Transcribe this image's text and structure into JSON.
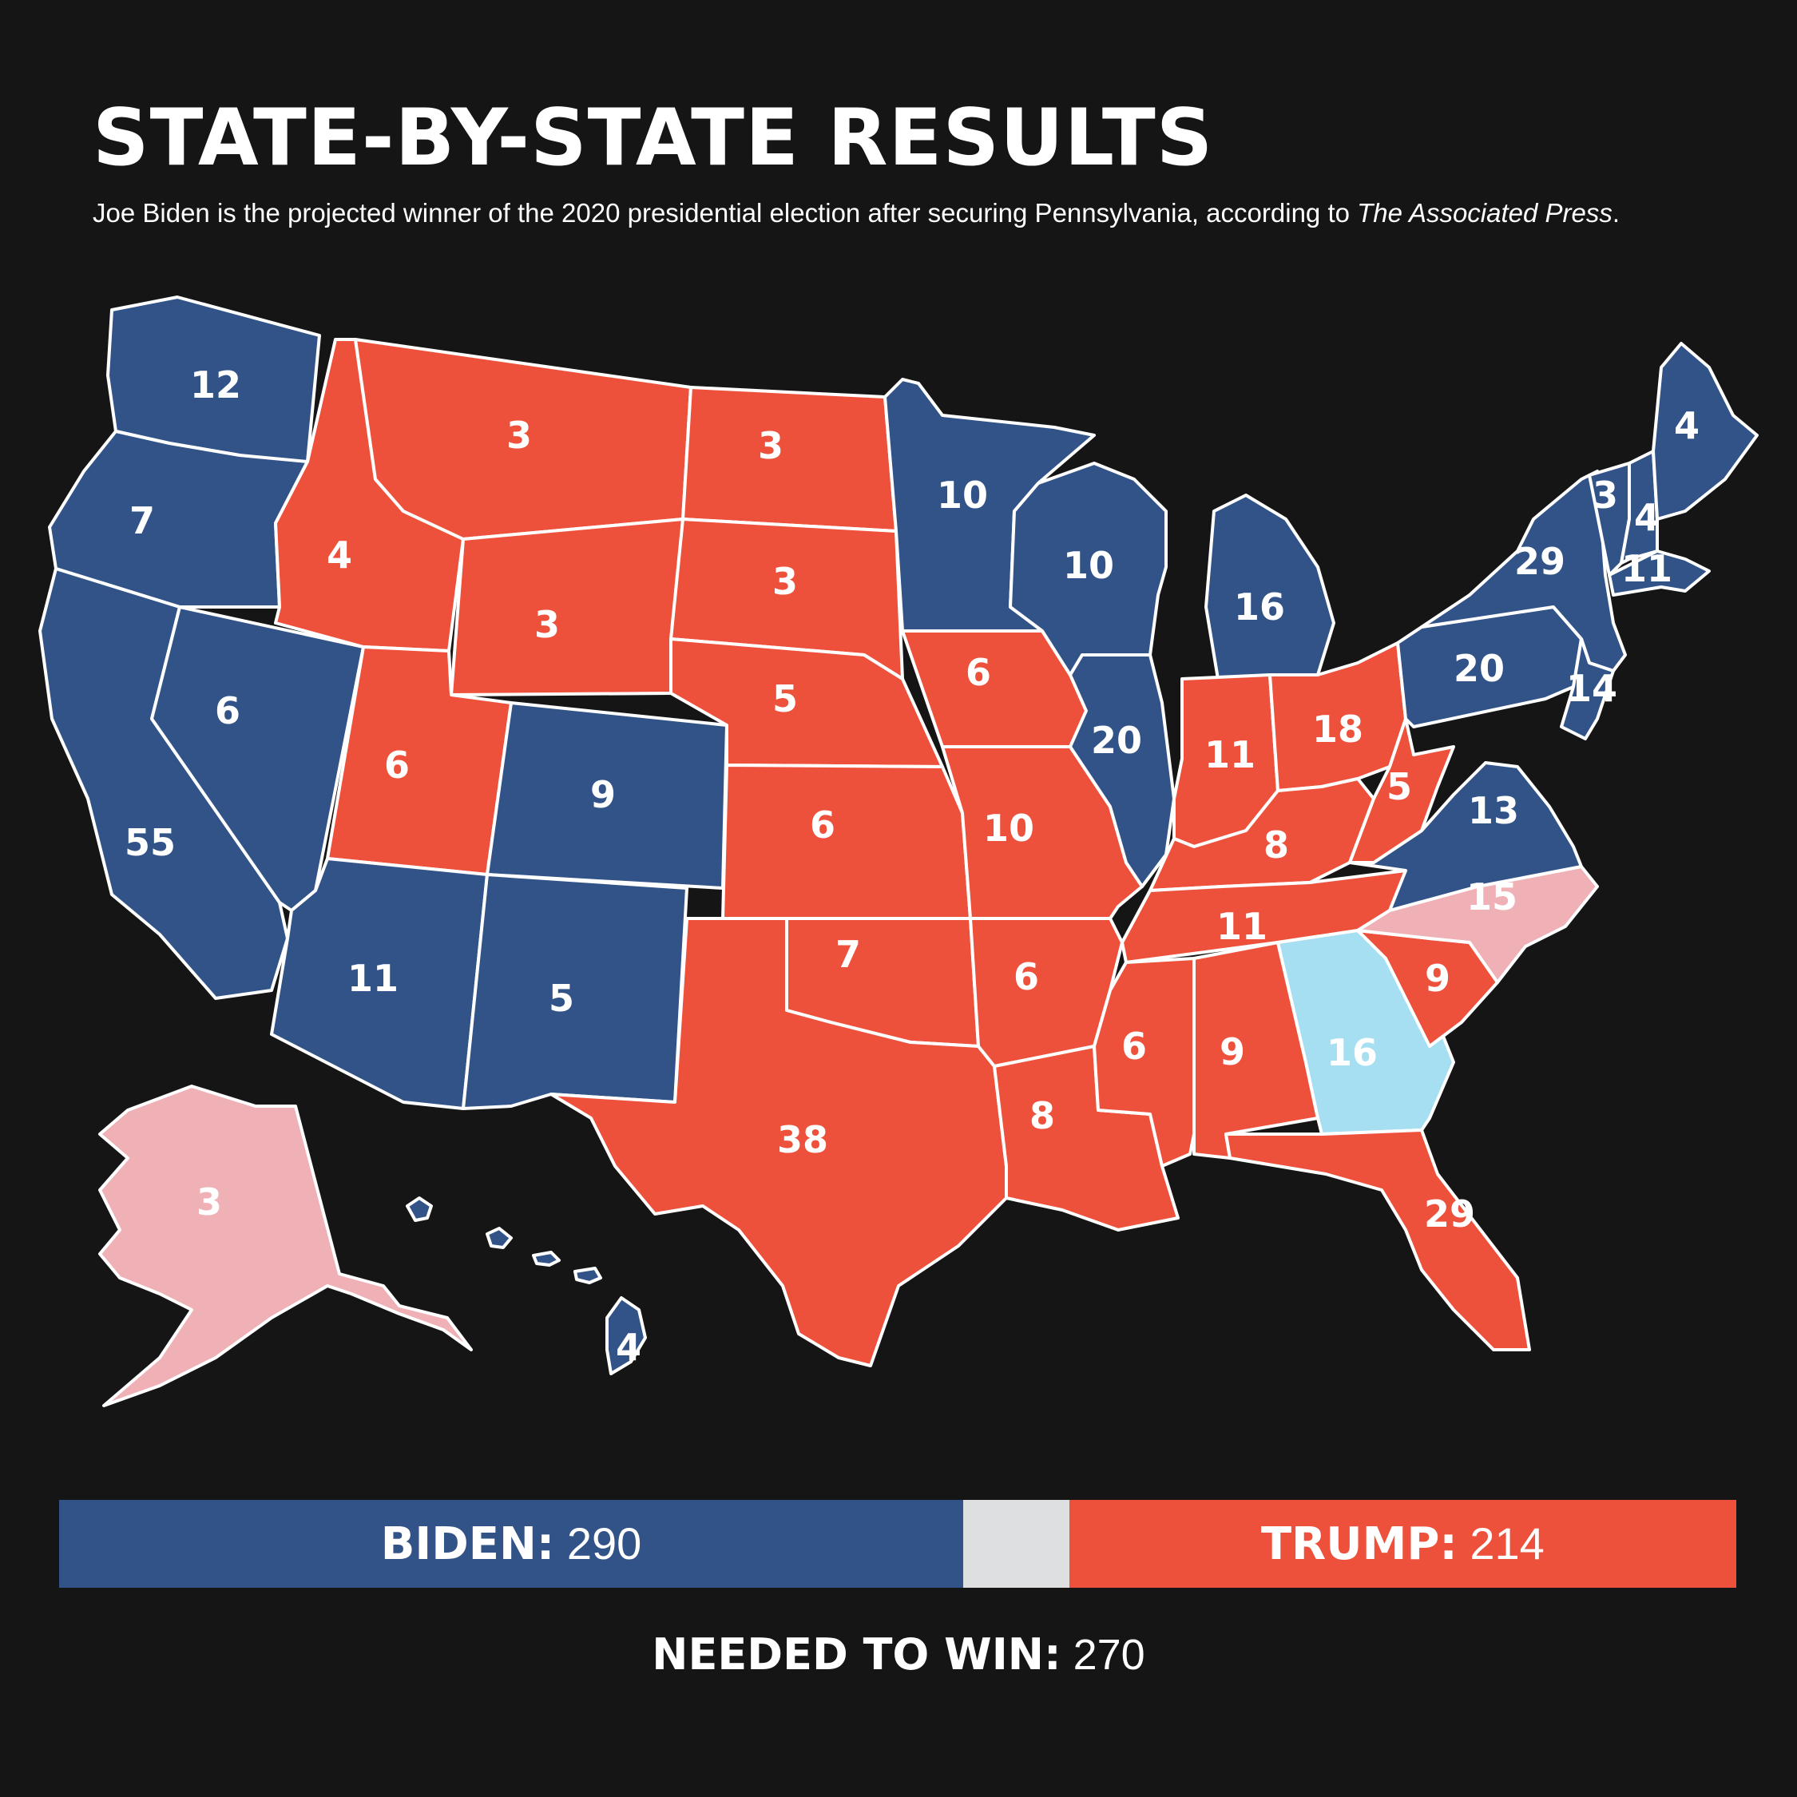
{
  "header": {
    "title": "STATE-BY-STATE RESULTS",
    "subtitle_main": "Joe Biden is the projected winner of the 2020 presidential election after securing Pennsylvania, according to ",
    "subtitle_source": "The Associated Press",
    "subtitle_end": "."
  },
  "colors": {
    "biden": "#325388",
    "trump": "#EE513B",
    "lean_trump": "#EFB0B6",
    "lean_biden": "#A6DFF2",
    "undecided": "#DEDFE0",
    "background": "#151515"
  },
  "states": [
    {
      "id": "WA",
      "votes": "12",
      "status": "biden"
    },
    {
      "id": "OR",
      "votes": "7",
      "status": "biden"
    },
    {
      "id": "CA",
      "votes": "55",
      "status": "biden"
    },
    {
      "id": "NV",
      "votes": "6",
      "status": "biden"
    },
    {
      "id": "ID",
      "votes": "4",
      "status": "trump"
    },
    {
      "id": "MT",
      "votes": "3",
      "status": "trump"
    },
    {
      "id": "WY",
      "votes": "3",
      "status": "trump"
    },
    {
      "id": "UT",
      "votes": "6",
      "status": "trump"
    },
    {
      "id": "AZ",
      "votes": "11",
      "status": "biden"
    },
    {
      "id": "CO",
      "votes": "9",
      "status": "biden"
    },
    {
      "id": "NM",
      "votes": "5",
      "status": "biden"
    },
    {
      "id": "ND",
      "votes": "3",
      "status": "trump"
    },
    {
      "id": "SD",
      "votes": "3",
      "status": "trump"
    },
    {
      "id": "NE",
      "votes": "5",
      "status": "trump"
    },
    {
      "id": "KS",
      "votes": "6",
      "status": "trump"
    },
    {
      "id": "OK",
      "votes": "7",
      "status": "trump"
    },
    {
      "id": "TX",
      "votes": "38",
      "status": "trump"
    },
    {
      "id": "MN",
      "votes": "10",
      "status": "biden"
    },
    {
      "id": "IA",
      "votes": "6",
      "status": "trump"
    },
    {
      "id": "MO",
      "votes": "10",
      "status": "trump"
    },
    {
      "id": "AR",
      "votes": "6",
      "status": "trump"
    },
    {
      "id": "LA",
      "votes": "8",
      "status": "trump"
    },
    {
      "id": "WI",
      "votes": "10",
      "status": "biden"
    },
    {
      "id": "IL",
      "votes": "20",
      "status": "biden"
    },
    {
      "id": "MI",
      "votes": "16",
      "status": "biden"
    },
    {
      "id": "IN",
      "votes": "11",
      "status": "trump"
    },
    {
      "id": "OH",
      "votes": "18",
      "status": "trump"
    },
    {
      "id": "KY",
      "votes": "8",
      "status": "trump"
    },
    {
      "id": "TN",
      "votes": "11",
      "status": "trump"
    },
    {
      "id": "MS",
      "votes": "6",
      "status": "trump"
    },
    {
      "id": "AL",
      "votes": "9",
      "status": "trump"
    },
    {
      "id": "GA",
      "votes": "16",
      "status": "lean_biden"
    },
    {
      "id": "FL",
      "votes": "29",
      "status": "trump"
    },
    {
      "id": "SC",
      "votes": "9",
      "status": "trump"
    },
    {
      "id": "NC",
      "votes": "15",
      "status": "lean_trump"
    },
    {
      "id": "VA",
      "votes": "13",
      "status": "biden"
    },
    {
      "id": "WV",
      "votes": "5",
      "status": "trump"
    },
    {
      "id": "PA",
      "votes": "20",
      "status": "biden"
    },
    {
      "id": "NY",
      "votes": "29",
      "status": "biden"
    },
    {
      "id": "VT",
      "votes": "3",
      "status": "biden"
    },
    {
      "id": "NH",
      "votes": "4",
      "status": "biden"
    },
    {
      "id": "ME",
      "votes": "4",
      "status": "biden"
    },
    {
      "id": "MA",
      "votes": "11",
      "status": "biden"
    },
    {
      "id": "NJ",
      "votes": "14",
      "status": "biden"
    },
    {
      "id": "AK",
      "votes": "3",
      "status": "lean_trump"
    },
    {
      "id": "HI",
      "votes": "4",
      "status": "biden"
    }
  ],
  "tally": {
    "biden_label": "BIDEN:",
    "biden_votes": 290,
    "trump_label": "TRUMP:",
    "trump_votes": 214,
    "total_votes": 538
  },
  "needed": {
    "label": "NEEDED TO WIN:",
    "votes": 270
  }
}
